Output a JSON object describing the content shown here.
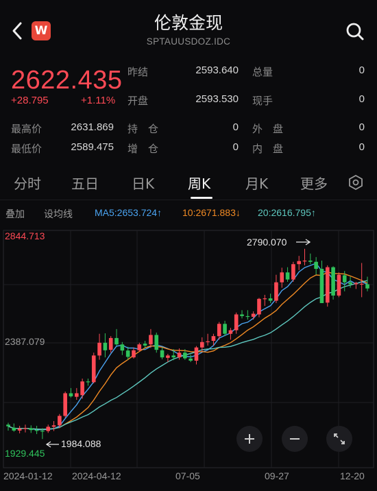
{
  "header": {
    "back_icon": "chevron-left-icon",
    "logo_text": "W",
    "title": "伦敦金现",
    "subtitle": "SPTAUUSDOZ.IDC",
    "search_icon": "search-icon"
  },
  "quote": {
    "price": "2622.435",
    "change": "+28.795",
    "change_pct": "+1.11%",
    "prev_close_label": "昨结",
    "prev_close": "2593.640",
    "open_label": "开盘",
    "open": "2593.530",
    "total_vol_label": "总量",
    "total_vol": "0",
    "cur_vol_label": "现手",
    "cur_vol": "0",
    "high_label": "最高价",
    "high": "2631.869",
    "low_label": "最低价",
    "low": "2589.475",
    "hold_label": "持　仓",
    "hold": "0",
    "add_label": "增　仓",
    "add": "0",
    "outer_label": "外　盘",
    "outer": "0",
    "inner_label": "内　盘",
    "inner": "0"
  },
  "tabs": [
    "分时",
    "五日",
    "日K",
    "周K",
    "月K",
    "更多"
  ],
  "active_tab": "周K",
  "indicators": {
    "overlay": "叠加",
    "ma_setting": "设均线",
    "ma5": "MA5:2653.724↑",
    "ma10": "10:2671.883↓",
    "ma20": "20:2616.795↑"
  },
  "colors": {
    "up": "#ff4a55",
    "down": "#2fc25b",
    "ma5": "#4aa3f0",
    "ma10": "#f08a24",
    "ma20": "#5ec8bf"
  },
  "chart_data": {
    "type": "candlestick",
    "y_top_label": "2844.713",
    "y_mid_label": "2387.079",
    "y_bottom_label": "1929.445",
    "ylim": [
      1929.445,
      2844.713
    ],
    "x_labels": [
      "2024-01-12",
      "2024-04-12",
      "07-05",
      "09-27",
      "12-20"
    ],
    "annotations": {
      "max_label": "2790.070",
      "min_label": "1984.088"
    },
    "candles": [
      [
        2045,
        2053,
        2020,
        2038
      ],
      [
        2032,
        2050,
        2015,
        2020
      ],
      [
        2020,
        2040,
        2008,
        2028
      ],
      [
        2027,
        2045,
        2012,
        2030
      ],
      [
        2030,
        2042,
        2010,
        2022
      ],
      [
        2022,
        2040,
        2005,
        2019
      ],
      [
        2019,
        2030,
        1984.088,
        2018
      ],
      [
        2018,
        2045,
        2010,
        2036
      ],
      [
        2036,
        2060,
        2018,
        2042
      ],
      [
        2042,
        2090,
        2030,
        2082
      ],
      [
        2082,
        2185,
        2075,
        2178
      ],
      [
        2178,
        2200,
        2160,
        2165
      ],
      [
        2163,
        2200,
        2150,
        2178
      ],
      [
        2170,
        2240,
        2155,
        2228
      ],
      [
        2228,
        2240,
        2210,
        2225
      ],
      [
        2225,
        2350,
        2220,
        2338
      ],
      [
        2338,
        2430,
        2320,
        2392
      ],
      [
        2392,
        2432,
        2330,
        2360
      ],
      [
        2362,
        2420,
        2350,
        2412
      ],
      [
        2412,
        2450,
        2380,
        2385
      ],
      [
        2385,
        2395,
        2340,
        2359
      ],
      [
        2359,
        2375,
        2320,
        2332
      ],
      [
        2330,
        2372,
        2325,
        2360
      ],
      [
        2360,
        2392,
        2355,
        2385
      ],
      [
        2388,
        2400,
        2370,
        2380
      ],
      [
        2385,
        2450,
        2370,
        2425
      ],
      [
        2425,
        2435,
        2350,
        2362
      ],
      [
        2360,
        2372,
        2322,
        2330
      ],
      [
        2328,
        2345,
        2310,
        2338
      ],
      [
        2338,
        2365,
        2318,
        2330
      ],
      [
        2330,
        2368,
        2320,
        2350
      ],
      [
        2350,
        2365,
        2320,
        2326
      ],
      [
        2325,
        2342,
        2310,
        2316
      ],
      [
        2316,
        2378,
        2300,
        2372
      ],
      [
        2372,
        2415,
        2355,
        2395
      ],
      [
        2395,
        2430,
        2380,
        2398
      ],
      [
        2400,
        2430,
        2380,
        2420
      ],
      [
        2420,
        2480,
        2405,
        2472
      ],
      [
        2472,
        2485,
        2420,
        2430
      ],
      [
        2430,
        2455,
        2405,
        2445
      ],
      [
        2445,
        2520,
        2430,
        2512
      ],
      [
        2512,
        2530,
        2495,
        2505
      ],
      [
        2505,
        2530,
        2490,
        2502
      ],
      [
        2502,
        2525,
        2490,
        2515
      ],
      [
        2512,
        2582,
        2500,
        2578
      ],
      [
        2578,
        2595,
        2548,
        2580
      ],
      [
        2580,
        2600,
        2560,
        2570
      ],
      [
        2570,
        2680,
        2560,
        2648
      ],
      [
        2648,
        2710,
        2625,
        2690
      ],
      [
        2690,
        2712,
        2650,
        2660
      ],
      [
        2660,
        2735,
        2650,
        2725
      ],
      [
        2725,
        2760,
        2700,
        2738
      ],
      [
        2738,
        2790.07,
        2720,
        2740
      ],
      [
        2740,
        2770,
        2725,
        2735
      ],
      [
        2735,
        2755,
        2680,
        2705
      ],
      [
        2705,
        2740,
        2560,
        2560
      ],
      [
        2562,
        2720,
        2545,
        2712
      ],
      [
        2712,
        2716,
        2575,
        2592
      ],
      [
        2592,
        2690,
        2585,
        2680
      ],
      [
        2678,
        2696,
        2610,
        2648
      ],
      [
        2648,
        2672,
        2625,
        2640
      ],
      [
        2640,
        2650,
        2620,
        2645
      ],
      [
        2642,
        2730,
        2585,
        2642
      ],
      [
        2640,
        2672,
        2610,
        2622
      ]
    ]
  },
  "chart_controls": {
    "zoom_in_icon": "plus-icon",
    "zoom_out_icon": "minus-icon",
    "expand_icon": "expand-icon"
  }
}
